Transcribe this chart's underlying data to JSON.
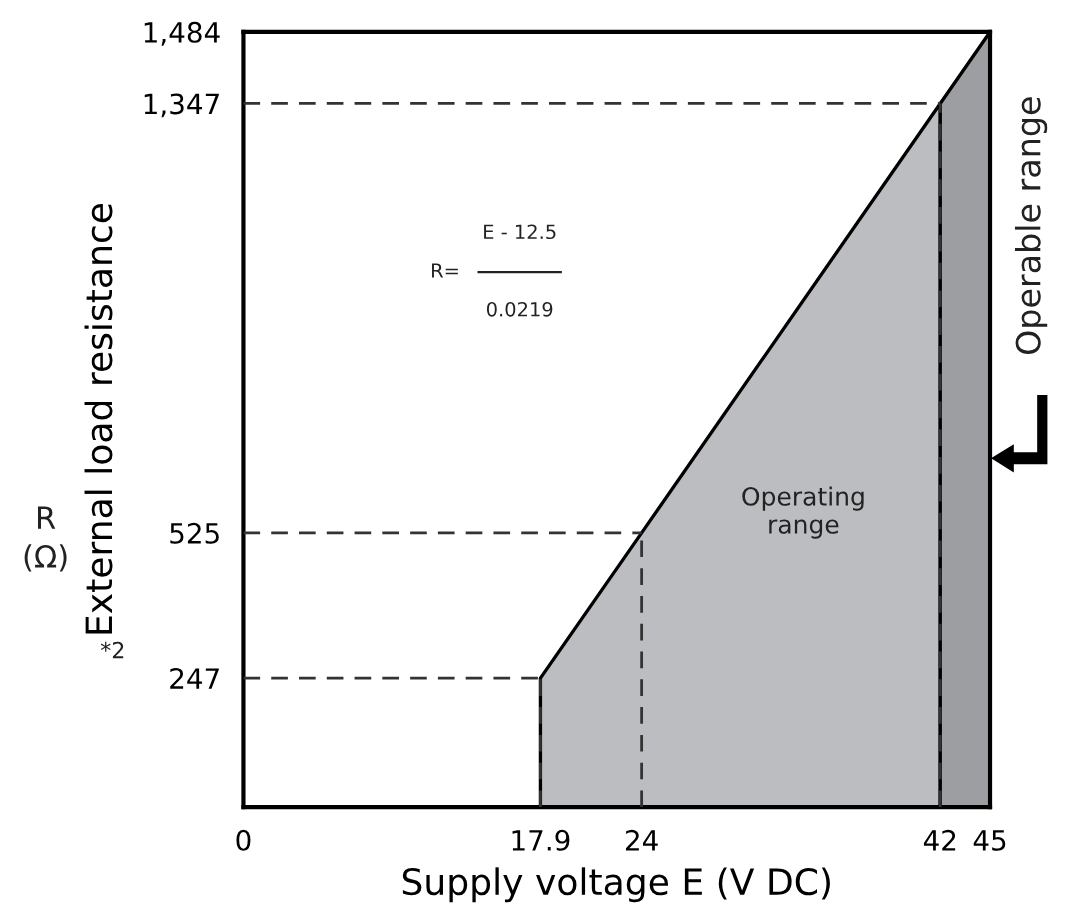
{
  "chart_data": {
    "type": "area",
    "xlabel": "Supply voltage E (V DC)",
    "ylabel": "External load resistance",
    "series": [
      {
        "color": "#bcbdc1",
        "x": [
          17.9,
          24,
          42
        ],
        "values": [
          247,
          525,
          1347
        ]
      },
      {
        "color": "#9d9ea2",
        "x": [
          42,
          45
        ],
        "values": [
          1347,
          1484
        ]
      }
    ],
    "xlim": [
      0,
      45
    ],
    "ylim": [
      0,
      1484
    ],
    "xticks": [
      0,
      17.9,
      24,
      42,
      45
    ],
    "yticks": [
      247,
      525,
      {
        "value": 1347,
        "label": "1,347"
      },
      {
        "value": 1484,
        "label": "1,484"
      }
    ],
    "ref_lines": [
      {
        "axis": "y",
        "value": 247,
        "line_style": "dashed"
      },
      {
        "axis": "y",
        "value": 525,
        "line_style": "dashed"
      },
      {
        "axis": "y",
        "value": 1347,
        "line_style": "dashed"
      },
      {
        "axis": "x",
        "value": 17.9,
        "line_style": "dashed"
      },
      {
        "axis": "x",
        "value": 24,
        "line_style": "dashed"
      },
      {
        "axis": "x",
        "value": 42,
        "line_style": "dashed"
      }
    ],
    "annotations": [
      "R=",
      "E - 12.5",
      "0.0219",
      "Operating range",
      "Operable range",
      "R",
      "(Ω)",
      "*2"
    ],
    "grid": false
  }
}
